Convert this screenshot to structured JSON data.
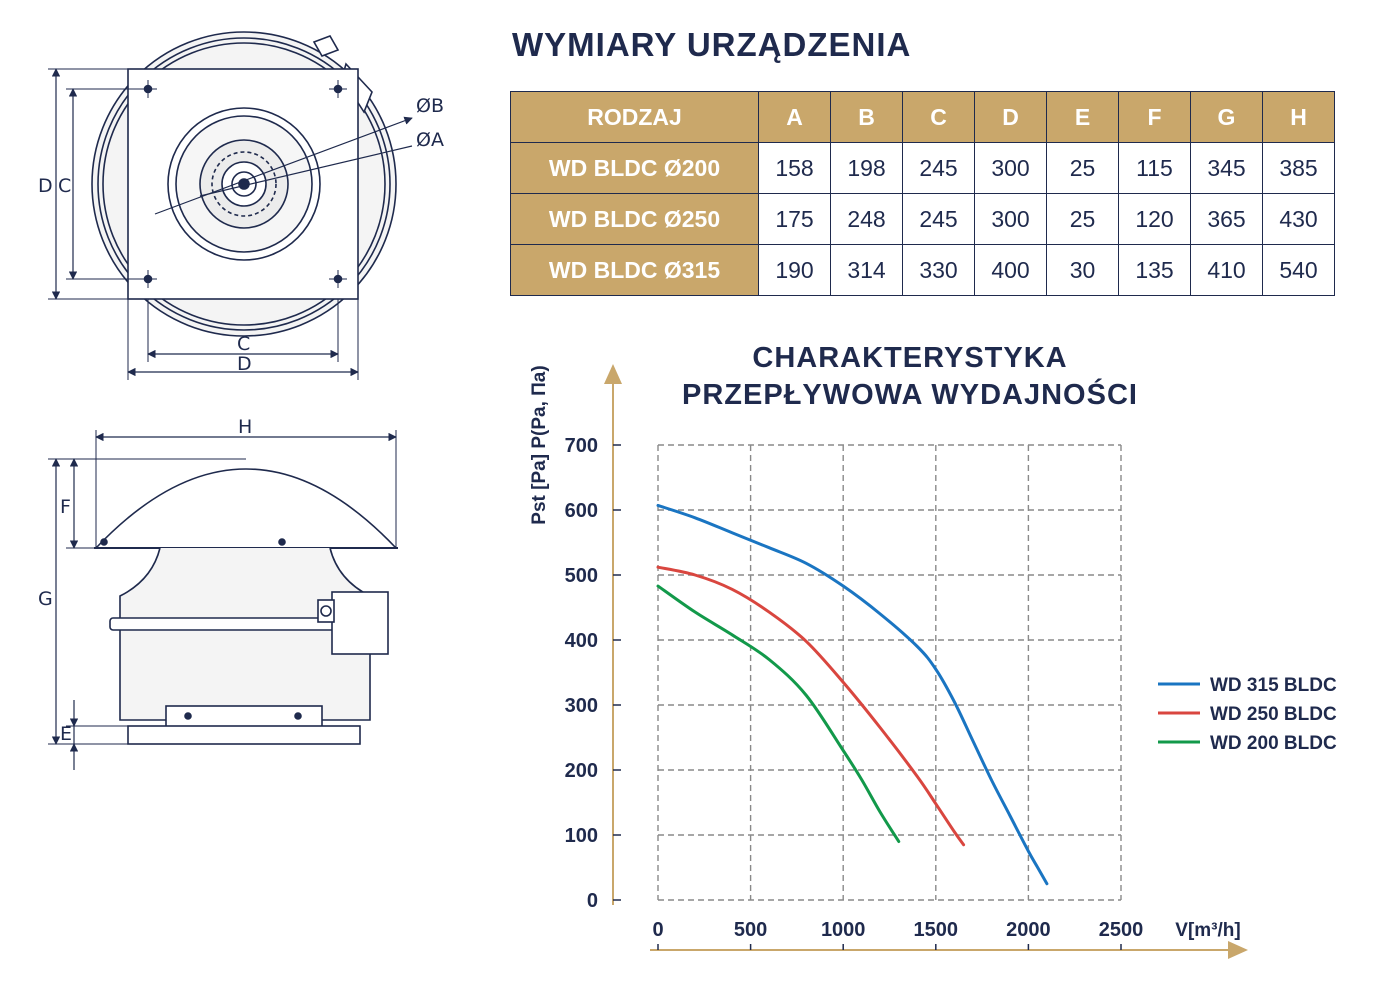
{
  "dimensions": {
    "title": "WYMIARY URZĄDZENIA",
    "headers": [
      "RODZAJ",
      "A",
      "B",
      "C",
      "D",
      "E",
      "F",
      "G",
      "H"
    ],
    "rows": [
      [
        "WD BLDC Ø200",
        "158",
        "198",
        "245",
        "300",
        "25",
        "115",
        "345",
        "385"
      ],
      [
        "WD BLDC Ø250",
        "175",
        "248",
        "245",
        "300",
        "25",
        "120",
        "365",
        "430"
      ],
      [
        "WD BLDC Ø315",
        "190",
        "314",
        "330",
        "400",
        "30",
        "135",
        "410",
        "540"
      ]
    ]
  },
  "drawing_labels": {
    "dia_b": "ØB",
    "dia_a": "ØA",
    "d": "D",
    "c": "C",
    "h": "H",
    "f": "F",
    "g": "G",
    "e": "E"
  },
  "colors": {
    "navy": "#1f2a4d",
    "gold": "#c9a76b",
    "blue": "#1a75c2",
    "red": "#d9463f",
    "green": "#12994a",
    "grid": "#8a8a8a"
  },
  "chart_data": {
    "type": "line",
    "title": [
      "CHARAKTERYSTYKA",
      "PRZEPŁYWOWA WYDAJNOŚCI"
    ],
    "xlabel": "V[m³/h]",
    "ylabel": "Pst [Pa] P(Pa, Па)",
    "xlim": [
      0,
      2500
    ],
    "ylim": [
      0,
      700
    ],
    "xticks": [
      0,
      500,
      1000,
      1500,
      2000,
      2500
    ],
    "yticks": [
      0,
      100,
      200,
      300,
      400,
      500,
      600,
      700
    ],
    "grid": true,
    "legend_position": "right",
    "series": [
      {
        "name": "WD 315 BLDC",
        "color": "#1a75c2",
        "x": [
          0,
          200,
          400,
          600,
          800,
          1000,
          1200,
          1400,
          1500,
          1600,
          1700,
          1800,
          1900,
          2000,
          2050,
          2100
        ],
        "y": [
          607,
          588,
          565,
          542,
          518,
          483,
          440,
          390,
          355,
          305,
          245,
          185,
          130,
          75,
          50,
          25
        ]
      },
      {
        "name": "WD 250 BLDC",
        "color": "#d9463f",
        "x": [
          0,
          200,
          400,
          600,
          800,
          1000,
          1200,
          1400,
          1500,
          1600,
          1650
        ],
        "y": [
          512,
          500,
          478,
          443,
          398,
          335,
          265,
          190,
          148,
          105,
          85
        ]
      },
      {
        "name": "WD 200 BLDC",
        "color": "#12994a",
        "x": [
          0,
          200,
          400,
          600,
          800,
          1000,
          1100,
          1200,
          1300
        ],
        "y": [
          483,
          443,
          408,
          370,
          315,
          230,
          185,
          135,
          90
        ]
      }
    ]
  }
}
